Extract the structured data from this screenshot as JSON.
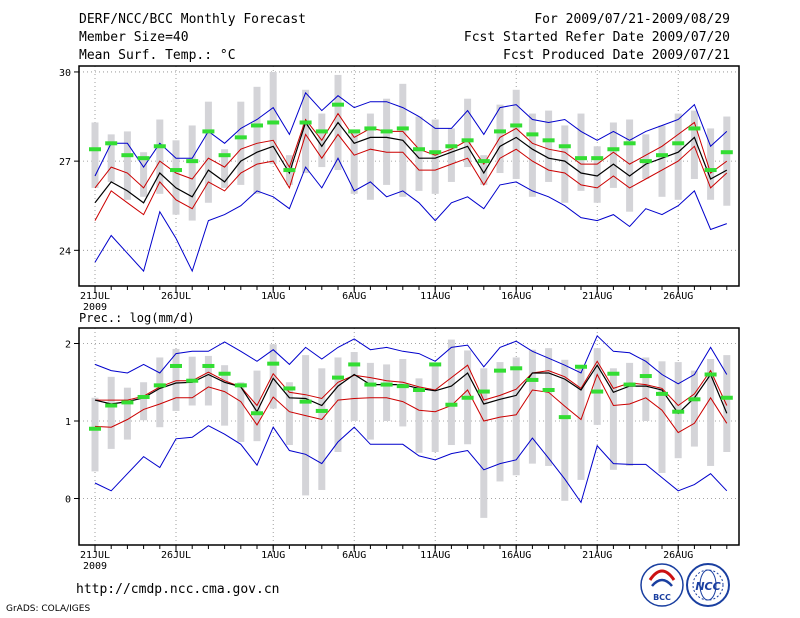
{
  "header": {
    "title": "DERF/NCC/BCC Monthly Forecast",
    "member": "Member Size=40",
    "variable": "Mean Surf. Temp.: °C",
    "period": "For 2009/07/21-2009/08/29",
    "started": "Fcst Started Refer Date 2009/07/20",
    "produced": "Fcst Produced Date 2009/07/21"
  },
  "footer": {
    "url": "http://cmdp.ncc.cma.gov.cn",
    "grads": "GrADS: COLA/IGES",
    "logo1_text": "BCC",
    "logo2_text": "NCC"
  },
  "colors": {
    "envelope": "#0000cc",
    "quartile": "#cc0000",
    "median": "#000000",
    "box": "#d4d4d8",
    "obs": "#33dd33"
  },
  "chart_data": [
    {
      "type": "line",
      "title": "Mean Surf. Temp.: °C",
      "x_tick_labels": [
        "21JUL",
        "26JUL",
        "1AUG",
        "6AUG",
        "11AUG",
        "16AUG",
        "21AUG",
        "26AUG"
      ],
      "x_tick_days": [
        1,
        6,
        12,
        17,
        22,
        27,
        32,
        37
      ],
      "x_year_label": "2009",
      "y_tick_labels": [
        "24",
        "27",
        "30"
      ],
      "y_ticks": [
        24,
        27,
        30
      ],
      "ylim": [
        22.8,
        30.2
      ],
      "days": [
        1,
        2,
        3,
        4,
        5,
        6,
        7,
        8,
        9,
        10,
        11,
        12,
        13,
        14,
        15,
        16,
        17,
        18,
        19,
        20,
        21,
        22,
        23,
        24,
        25,
        26,
        27,
        28,
        29,
        30,
        31,
        32,
        33,
        34,
        35,
        36,
        37,
        38,
        39,
        40
      ],
      "series": [
        {
          "name": "max",
          "values": [
            26.5,
            27.6,
            27.6,
            26.8,
            27.6,
            27.1,
            27.1,
            28.0,
            27.6,
            28.1,
            28.4,
            28.8,
            27.9,
            29.3,
            28.7,
            29.2,
            28.8,
            29.0,
            29.0,
            28.8,
            28.5,
            28.1,
            28.1,
            28.7,
            27.9,
            28.8,
            28.9,
            28.4,
            28.3,
            28.4,
            28.0,
            27.7,
            28.0,
            27.7,
            28.0,
            28.2,
            28.4,
            28.9,
            27.5,
            28.0
          ]
        },
        {
          "name": "q75",
          "values": [
            26.1,
            26.8,
            26.6,
            26.1,
            27.0,
            26.6,
            26.4,
            27.1,
            26.8,
            27.4,
            27.6,
            27.7,
            26.8,
            28.4,
            27.7,
            28.6,
            27.8,
            28.1,
            28.0,
            28.0,
            27.4,
            27.2,
            27.4,
            27.7,
            26.9,
            27.8,
            28.1,
            27.6,
            27.4,
            27.3,
            26.9,
            26.9,
            27.3,
            26.9,
            27.2,
            27.5,
            27.9,
            28.3,
            26.6,
            27.0
          ]
        },
        {
          "name": "median",
          "values": [
            25.6,
            26.3,
            26.0,
            25.6,
            26.6,
            26.1,
            25.8,
            26.7,
            26.3,
            27.0,
            27.3,
            27.5,
            26.6,
            28.3,
            27.5,
            28.3,
            27.6,
            27.8,
            27.8,
            27.7,
            27.1,
            27.1,
            27.3,
            27.5,
            26.6,
            27.5,
            27.8,
            27.4,
            27.1,
            27.0,
            26.6,
            26.5,
            26.9,
            26.5,
            26.9,
            27.1,
            27.3,
            27.8,
            26.4,
            26.7
          ]
        },
        {
          "name": "q25",
          "values": [
            25.0,
            26.0,
            25.6,
            25.2,
            26.3,
            25.7,
            25.4,
            26.3,
            26.0,
            26.6,
            26.9,
            27.0,
            26.1,
            27.9,
            27.1,
            27.9,
            27.2,
            27.4,
            27.3,
            27.3,
            26.7,
            26.7,
            26.9,
            27.1,
            26.2,
            27.1,
            27.4,
            27.0,
            26.7,
            26.6,
            26.2,
            26.1,
            26.5,
            26.1,
            26.4,
            26.7,
            27.0,
            27.5,
            26.1,
            26.6
          ]
        },
        {
          "name": "min",
          "values": [
            23.6,
            24.5,
            23.9,
            23.3,
            25.3,
            24.4,
            23.3,
            25.0,
            25.2,
            25.5,
            26.0,
            25.8,
            25.4,
            26.8,
            26.1,
            27.1,
            26.0,
            26.3,
            25.8,
            26.0,
            25.6,
            25.0,
            25.6,
            25.8,
            25.4,
            26.2,
            26.3,
            26.0,
            25.8,
            25.5,
            25.1,
            25.0,
            25.2,
            24.8,
            25.4,
            25.2,
            25.5,
            26.0,
            24.7,
            24.9
          ]
        },
        {
          "name": "box_top",
          "values": [
            28.3,
            27.9,
            28.0,
            27.3,
            28.4,
            27.7,
            28.2,
            29.0,
            27.4,
            29.0,
            29.5,
            30.0,
            27.2,
            29.4,
            28.6,
            29.9,
            28.0,
            28.6,
            29.1,
            29.6,
            28.5,
            28.4,
            28.1,
            29.1,
            27.2,
            28.9,
            29.4,
            28.6,
            28.7,
            28.2,
            28.6,
            27.5,
            28.3,
            28.4,
            27.9,
            28.2,
            28.6,
            28.7,
            28.1,
            28.5
          ]
        },
        {
          "name": "box_bottom",
          "values": [
            26.1,
            26.3,
            25.7,
            25.8,
            25.9,
            25.2,
            25.0,
            25.6,
            26.1,
            26.2,
            25.9,
            26.9,
            26.2,
            26.6,
            26.8,
            26.7,
            25.9,
            25.7,
            26.2,
            25.8,
            26.0,
            25.9,
            26.3,
            26.8,
            26.2,
            26.6,
            26.4,
            25.8,
            26.3,
            25.6,
            26.0,
            25.6,
            26.1,
            25.3,
            26.4,
            25.8,
            25.7,
            26.4,
            25.7,
            25.5
          ]
        },
        {
          "name": "observed",
          "values": [
            27.4,
            27.6,
            27.2,
            27.1,
            27.5,
            26.7,
            27.0,
            28.0,
            27.2,
            27.8,
            28.2,
            28.3,
            26.7,
            28.3,
            28.0,
            28.9,
            28.0,
            28.1,
            28.0,
            28.1,
            27.4,
            27.3,
            27.5,
            27.7,
            27.0,
            28.0,
            28.2,
            27.9,
            27.7,
            27.5,
            27.1,
            27.1,
            27.4,
            27.6,
            27.0,
            27.2,
            27.6,
            28.1,
            26.7,
            27.3
          ]
        }
      ]
    },
    {
      "type": "line",
      "title": "Prec.: log(mm/d)",
      "x_tick_labels": [
        "21JUL",
        "26JUL",
        "1AUG",
        "6AUG",
        "11AUG",
        "16AUG",
        "21AUG",
        "26AUG"
      ],
      "x_tick_days": [
        1,
        6,
        12,
        17,
        22,
        27,
        32,
        37
      ],
      "x_year_label": "2009",
      "y_tick_labels": [
        "0",
        "1",
        "2"
      ],
      "y_ticks": [
        0,
        1,
        2
      ],
      "ylim": [
        -0.6,
        2.2
      ],
      "days": [
        1,
        2,
        3,
        4,
        5,
        6,
        7,
        8,
        9,
        10,
        11,
        12,
        13,
        14,
        15,
        16,
        17,
        18,
        19,
        20,
        21,
        22,
        23,
        24,
        25,
        26,
        27,
        28,
        29,
        30,
        31,
        32,
        33,
        34,
        35,
        36,
        37,
        38,
        39,
        40
      ],
      "series": [
        {
          "name": "max",
          "values": [
            1.73,
            1.65,
            1.62,
            1.73,
            1.62,
            1.87,
            1.9,
            1.9,
            2.02,
            1.9,
            1.77,
            1.92,
            1.73,
            1.95,
            1.8,
            1.95,
            2.06,
            1.92,
            1.95,
            1.9,
            1.87,
            1.77,
            1.95,
            1.98,
            1.7,
            1.95,
            2.03,
            1.9,
            1.81,
            1.72,
            1.62,
            2.1,
            1.9,
            1.88,
            1.77,
            1.6,
            1.48,
            1.6,
            1.95,
            1.6
          ]
        },
        {
          "name": "q75",
          "values": [
            1.27,
            1.27,
            1.27,
            1.32,
            1.44,
            1.52,
            1.52,
            1.63,
            1.52,
            1.44,
            1.2,
            1.61,
            1.37,
            1.34,
            1.29,
            1.5,
            1.59,
            1.56,
            1.52,
            1.5,
            1.44,
            1.4,
            1.56,
            1.72,
            1.27,
            1.33,
            1.41,
            1.62,
            1.65,
            1.57,
            1.42,
            1.77,
            1.42,
            1.49,
            1.47,
            1.42,
            1.2,
            1.35,
            1.65,
            1.2
          ]
        },
        {
          "name": "median",
          "values": [
            1.27,
            1.22,
            1.25,
            1.3,
            1.42,
            1.49,
            1.5,
            1.6,
            1.5,
            1.44,
            1.12,
            1.55,
            1.3,
            1.29,
            1.2,
            1.45,
            1.6,
            1.47,
            1.47,
            1.47,
            1.42,
            1.39,
            1.45,
            1.62,
            1.22,
            1.28,
            1.33,
            1.62,
            1.62,
            1.54,
            1.4,
            1.72,
            1.37,
            1.45,
            1.45,
            1.4,
            1.1,
            1.3,
            1.6,
            1.1
          ]
        },
        {
          "name": "q25",
          "values": [
            0.93,
            0.92,
            1.02,
            1.15,
            1.22,
            1.3,
            1.3,
            1.44,
            1.38,
            1.25,
            0.95,
            1.31,
            1.12,
            1.07,
            1.02,
            1.27,
            1.29,
            1.3,
            1.3,
            1.25,
            1.14,
            1.12,
            1.2,
            1.4,
            1.0,
            1.05,
            1.08,
            1.4,
            1.37,
            1.19,
            1.02,
            1.6,
            1.2,
            1.22,
            1.3,
            1.14,
            0.85,
            0.97,
            1.3,
            0.97
          ]
        },
        {
          "name": "min",
          "values": [
            0.2,
            0.1,
            0.32,
            0.54,
            0.4,
            0.77,
            0.79,
            0.94,
            0.83,
            0.7,
            0.43,
            0.92,
            0.62,
            0.57,
            0.45,
            0.73,
            0.92,
            0.7,
            0.7,
            0.7,
            0.55,
            0.5,
            0.58,
            0.62,
            0.37,
            0.45,
            0.5,
            0.78,
            0.52,
            0.25,
            -0.05,
            0.68,
            0.45,
            0.44,
            0.44,
            0.27,
            0.1,
            0.18,
            0.32,
            0.1
          ]
        },
        {
          "name": "box_top",
          "values": [
            1.3,
            1.57,
            1.43,
            1.5,
            1.82,
            1.93,
            1.83,
            1.84,
            1.72,
            1.5,
            1.65,
            1.99,
            1.5,
            1.85,
            1.68,
            1.82,
            1.89,
            1.75,
            1.73,
            1.8,
            1.55,
            1.71,
            2.05,
            1.91,
            1.68,
            1.76,
            1.82,
            1.92,
            1.94,
            1.79,
            1.7,
            1.94,
            1.68,
            1.75,
            1.82,
            1.77,
            1.76,
            1.65,
            1.8,
            1.85
          ]
        },
        {
          "name": "box_bottom",
          "values": [
            0.35,
            0.64,
            0.76,
            1.01,
            0.92,
            1.13,
            1.2,
            1.2,
            0.94,
            0.73,
            0.74,
            1.16,
            0.69,
            0.04,
            0.11,
            0.6,
            1.0,
            0.76,
            1.0,
            0.93,
            0.59,
            0.6,
            0.69,
            0.7,
            -0.25,
            0.22,
            0.3,
            0.45,
            0.42,
            -0.03,
            0.24,
            0.95,
            0.37,
            0.42,
            1.0,
            0.33,
            0.52,
            0.67,
            0.42,
            0.6
          ]
        },
        {
          "name": "observed",
          "values": [
            0.9,
            1.2,
            1.24,
            1.31,
            1.46,
            1.71,
            1.52,
            1.71,
            1.61,
            1.46,
            1.1,
            1.74,
            1.42,
            1.25,
            1.13,
            1.56,
            1.73,
            1.47,
            1.47,
            1.45,
            1.4,
            1.73,
            1.21,
            1.3,
            1.38,
            1.65,
            1.68,
            1.53,
            1.4,
            1.05,
            1.7,
            1.38,
            1.61,
            1.47,
            1.58,
            1.35,
            1.12,
            1.28,
            1.6,
            1.3
          ]
        }
      ]
    }
  ]
}
